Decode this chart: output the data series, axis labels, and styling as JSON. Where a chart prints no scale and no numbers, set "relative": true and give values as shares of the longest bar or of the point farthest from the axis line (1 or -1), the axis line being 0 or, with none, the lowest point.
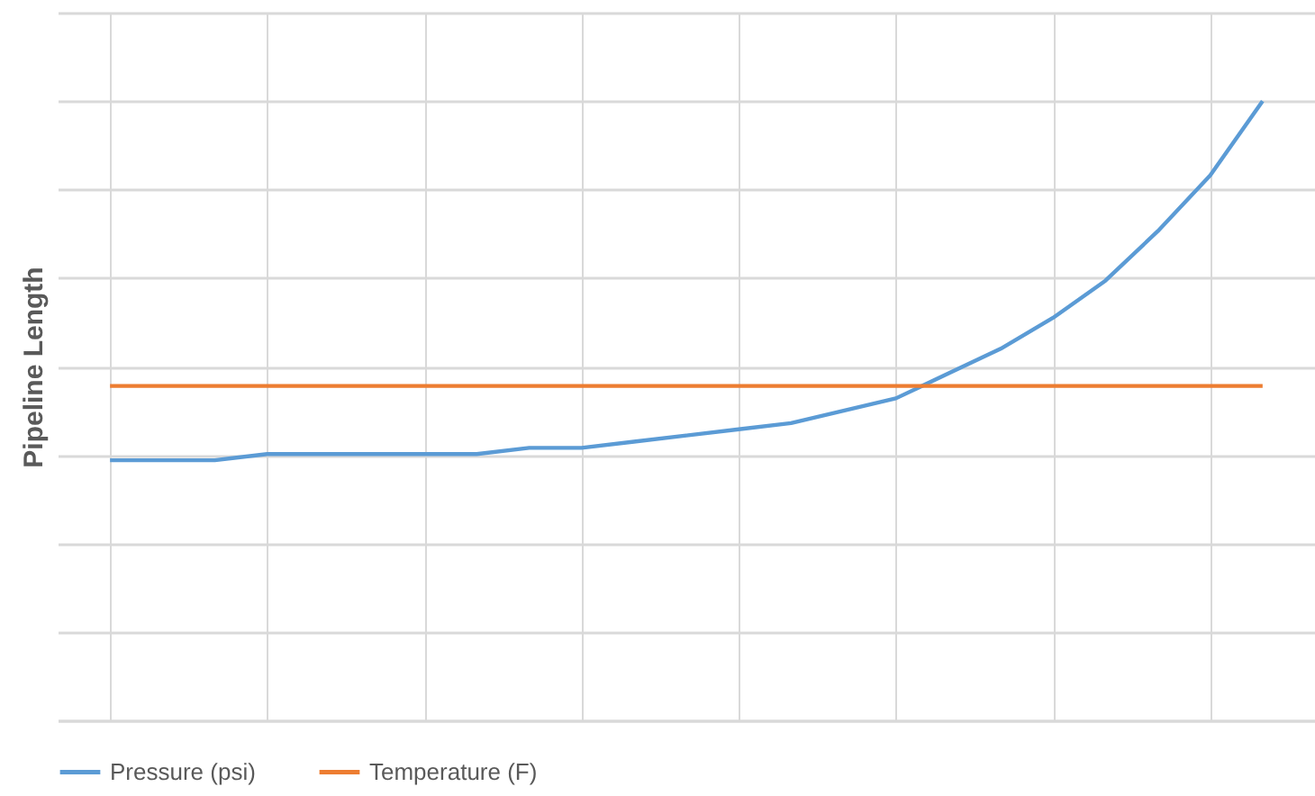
{
  "chart_data": {
    "type": "line",
    "ylabel": "Pipeline Length",
    "relative": true,
    "grid": true,
    "legend": "bottom",
    "marker": "none",
    "line_style": "solid",
    "categories": [
      null,
      null,
      null,
      null,
      null,
      null,
      null,
      null,
      null,
      null,
      null,
      null,
      null,
      null,
      null,
      null,
      null,
      null,
      null,
      null,
      null,
      null,
      null
    ],
    "series": [
      {
        "name": "Pressure (psi)",
        "color": "#5b9bd5",
        "values": [
          0.42,
          0.42,
          0.42,
          0.43,
          0.43,
          0.43,
          0.43,
          0.43,
          0.44,
          0.44,
          0.45,
          0.46,
          0.47,
          0.48,
          0.5,
          0.52,
          0.56,
          0.6,
          0.65,
          0.71,
          0.79,
          0.88,
          1
        ]
      },
      {
        "name": "Temperature (F)",
        "color": "#ed7d31",
        "values": [
          0.54,
          0.54,
          0.54,
          0.54,
          0.54,
          0.54,
          0.54,
          0.54,
          0.54,
          0.54,
          0.54,
          0.54,
          0.54,
          0.54,
          0.54,
          0.54,
          0.54,
          0.54,
          0.54,
          0.54,
          0.54,
          0.54,
          0.54
        ]
      }
    ]
  }
}
